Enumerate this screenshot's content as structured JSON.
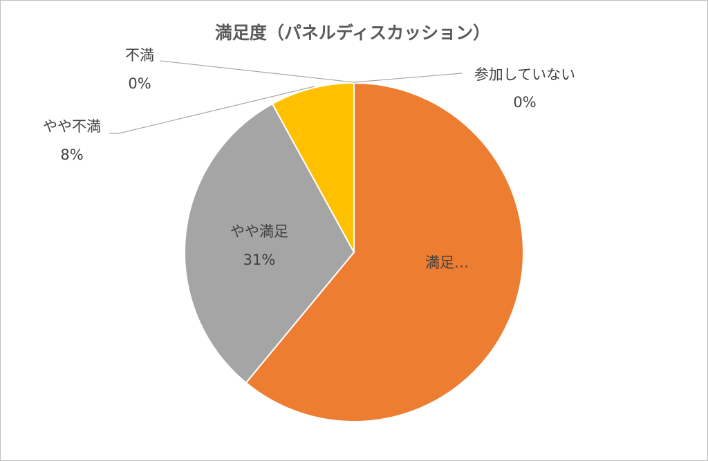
{
  "chart_data": {
    "type": "pie",
    "title": "満足度（パネルディスカッション）",
    "start_angle_deg": 0,
    "direction": "clockwise",
    "slices": [
      {
        "label": "満足",
        "value": 61,
        "color": "#ED7D31",
        "label_text": "満足…",
        "pct_text": ""
      },
      {
        "label": "やや満足",
        "value": 31,
        "color": "#A5A5A5",
        "label_text": "やや満足",
        "pct_text": "31%"
      },
      {
        "label": "やや不満",
        "value": 8,
        "color": "#FFC000",
        "label_text": "やや不満",
        "pct_text": "8%"
      },
      {
        "label": "不満",
        "value": 0,
        "color": "#5B9BD5",
        "label_text": "不満",
        "pct_text": "0%"
      },
      {
        "label": "参加していない",
        "value": 0,
        "color": "#4472C4",
        "label_text": "参加していない",
        "pct_text": "0%"
      }
    ]
  }
}
